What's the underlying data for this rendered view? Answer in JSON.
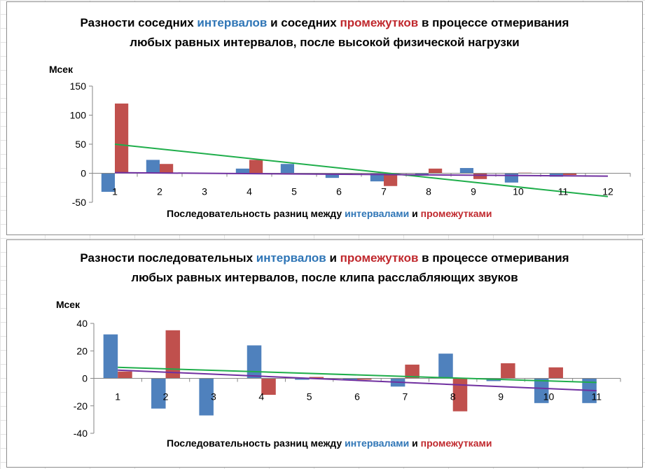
{
  "charts": [
    {
      "title_parts": {
        "p1": "Разности соседних ",
        "p2": "интервалов",
        "p3": " и соседних ",
        "p4": "промежутков",
        "p5": " в процессе отмеривания любых равных интервалов, после высокой физической нагрузки"
      },
      "unit": "Мсек",
      "xtitle_parts": {
        "p1": "Последовательность разниц между ",
        "p2": "интервалами",
        "p3": " и ",
        "p4": "промежутками"
      }
    },
    {
      "title_parts": {
        "p1": "Разности последовательных ",
        "p2": "интервалов",
        "p3": " и ",
        "p4": "промежутков",
        "p5": " в процессе отмеривания любых равных интервалов, после клипа расслабляющих звуков"
      },
      "unit": "Мсек",
      "xtitle_parts": {
        "p1": "Последовательность разниц между ",
        "p2": "интервалами",
        "p3": " и ",
        "p4": "промежутками"
      }
    }
  ],
  "colors": {
    "intervals": "#4f81bd",
    "gaps": "#c0504d",
    "trend_green": "#1fae4b",
    "trend_purple": "#7030a0",
    "title_blue": "#2e75b6",
    "title_red": "#c0282d"
  },
  "chart_data": [
    {
      "type": "bar",
      "categories": [
        "1",
        "2",
        "3",
        "4",
        "5",
        "6",
        "7",
        "8",
        "9",
        "10",
        "11",
        "12"
      ],
      "ylim": [
        -50,
        150
      ],
      "yticks": [
        -50,
        0,
        50,
        100,
        150
      ],
      "grid": false,
      "series": [
        {
          "values": [
            -32,
            23,
            0,
            8,
            16,
            -8,
            -14,
            -4,
            9,
            -16,
            -6,
            0
          ]
        },
        {
          "values": [
            120,
            16,
            0,
            23,
            -2,
            -3,
            -22,
            8,
            -10,
            1,
            -3,
            0
          ]
        }
      ],
      "trendlines": [
        {
          "color_key": "trend_green",
          "from": [
            1,
            50
          ],
          "to": [
            12,
            -40
          ]
        },
        {
          "color_key": "trend_purple",
          "from": [
            1,
            1
          ],
          "to": [
            12,
            -5
          ]
        }
      ]
    },
    {
      "type": "bar",
      "categories": [
        "1",
        "2",
        "3",
        "4",
        "5",
        "6",
        "7",
        "8",
        "9",
        "10",
        "11"
      ],
      "ylim": [
        -40,
        40
      ],
      "yticks": [
        -40,
        -20,
        0,
        20,
        40
      ],
      "grid": false,
      "series": [
        {
          "values": [
            32,
            -22,
            -27,
            24,
            -1,
            -1,
            -6,
            18,
            -2,
            -18,
            -18
          ]
        },
        {
          "values": [
            5,
            35,
            0,
            -12,
            1,
            -1,
            10,
            -24,
            11,
            8,
            0
          ]
        }
      ],
      "trendlines": [
        {
          "color_key": "trend_green",
          "from": [
            1,
            8
          ],
          "to": [
            11,
            -3
          ]
        },
        {
          "color_key": "trend_purple",
          "from": [
            1,
            6
          ],
          "to": [
            11,
            -9
          ]
        }
      ]
    }
  ]
}
